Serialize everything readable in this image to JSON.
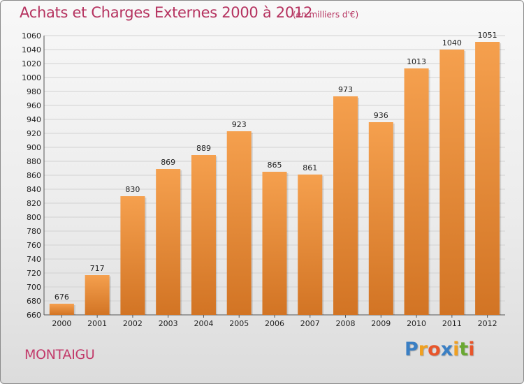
{
  "header": {
    "title": "Achats et Charges Externes 2000 à 2012",
    "subtitle": "(en milliers d'€)"
  },
  "footer": {
    "city": "MONTAIGU",
    "logo": [
      {
        "char": "P",
        "color": "#3a7fc4"
      },
      {
        "char": "r",
        "color": "#f0a020"
      },
      {
        "char": "o",
        "color": "#e8552a"
      },
      {
        "char": "x",
        "color": "#3a7fc4"
      },
      {
        "char": "i",
        "color": "#f0a020"
      },
      {
        "char": "t",
        "color": "#6aa832"
      },
      {
        "char": "i",
        "color": "#e8552a"
      }
    ]
  },
  "chart_data": {
    "type": "bar",
    "title": "Achats et Charges Externes 2000 à 2012",
    "subtitle": "(en milliers d'€)",
    "categories": [
      "2000",
      "2001",
      "2002",
      "2003",
      "2004",
      "2005",
      "2006",
      "2007",
      "2008",
      "2009",
      "2010",
      "2011",
      "2012"
    ],
    "values": [
      676,
      717,
      830,
      869,
      889,
      923,
      865,
      861,
      973,
      936,
      1013,
      1040,
      1051
    ],
    "ylim": [
      660,
      1060
    ],
    "ytick_step": 20,
    "grid": true,
    "bar_color": "#f5a04e",
    "bar_color_dark": "#d27424"
  }
}
